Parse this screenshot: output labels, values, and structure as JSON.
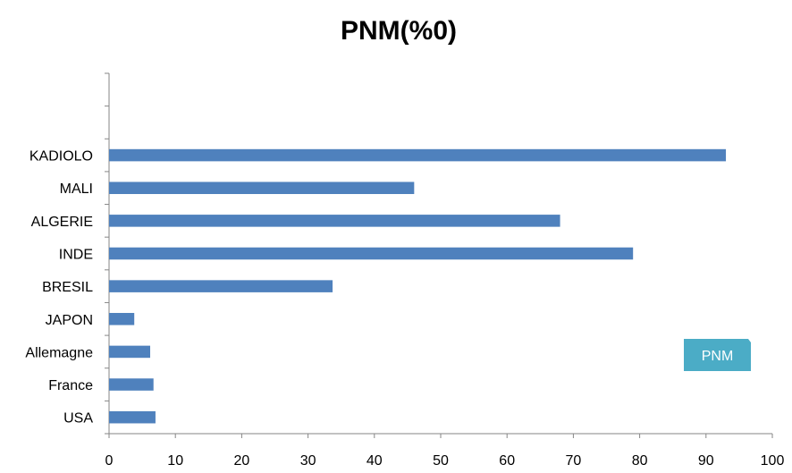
{
  "chart_data": {
    "type": "bar",
    "orientation": "horizontal",
    "title": "PNM(%0)",
    "xlabel": "",
    "ylabel": "",
    "categories": [
      "USA",
      "France",
      "Allemagne",
      "JAPON",
      "BRESIL",
      "INDE",
      "ALGERIE",
      "MALI",
      "KADIOLO"
    ],
    "series": [
      {
        "name": "PNM",
        "values": [
          7,
          6.7,
          6.2,
          3.8,
          33.7,
          79,
          68,
          46,
          93
        ]
      }
    ],
    "xlim": [
      0,
      100
    ],
    "x_ticks": [
      0,
      10,
      20,
      30,
      40,
      50,
      60,
      70,
      80,
      90,
      100
    ],
    "empty_category_slots_above": 2,
    "grid": false,
    "legend_position": "right",
    "bar_color": "#4f81bd",
    "legend_color": "#4bacc6"
  }
}
